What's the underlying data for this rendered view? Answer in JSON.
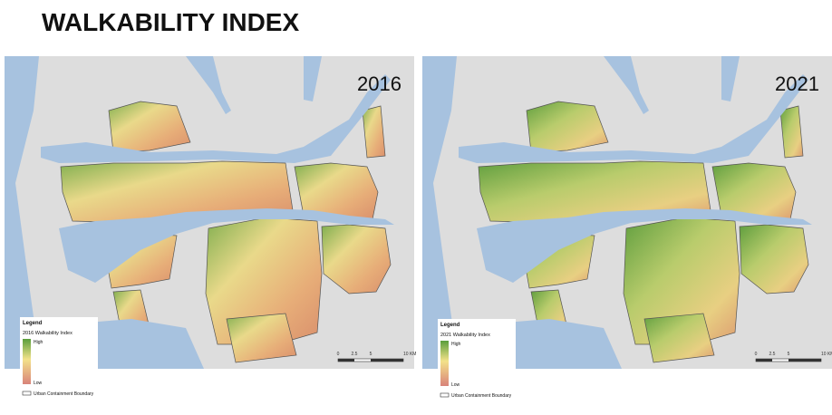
{
  "header": {
    "title": "WALKABILITY INDEX"
  },
  "maps": [
    {
      "year": "2016",
      "legend": {
        "heading": "Legend",
        "title": "2016 Walkability Index",
        "high": "High",
        "low": "Low",
        "boundary": "Urban Containment Boundary"
      },
      "scale": [
        "0",
        "2.5",
        "5",
        "10 KM"
      ]
    },
    {
      "year": "2021",
      "legend": {
        "heading": "Legend",
        "title": "2021 Walkability Index",
        "high": "High",
        "low": "Low",
        "boundary": "Urban Containment Boundary"
      },
      "scale": [
        "0",
        "2.5",
        "5",
        "10 KM"
      ]
    }
  ]
}
